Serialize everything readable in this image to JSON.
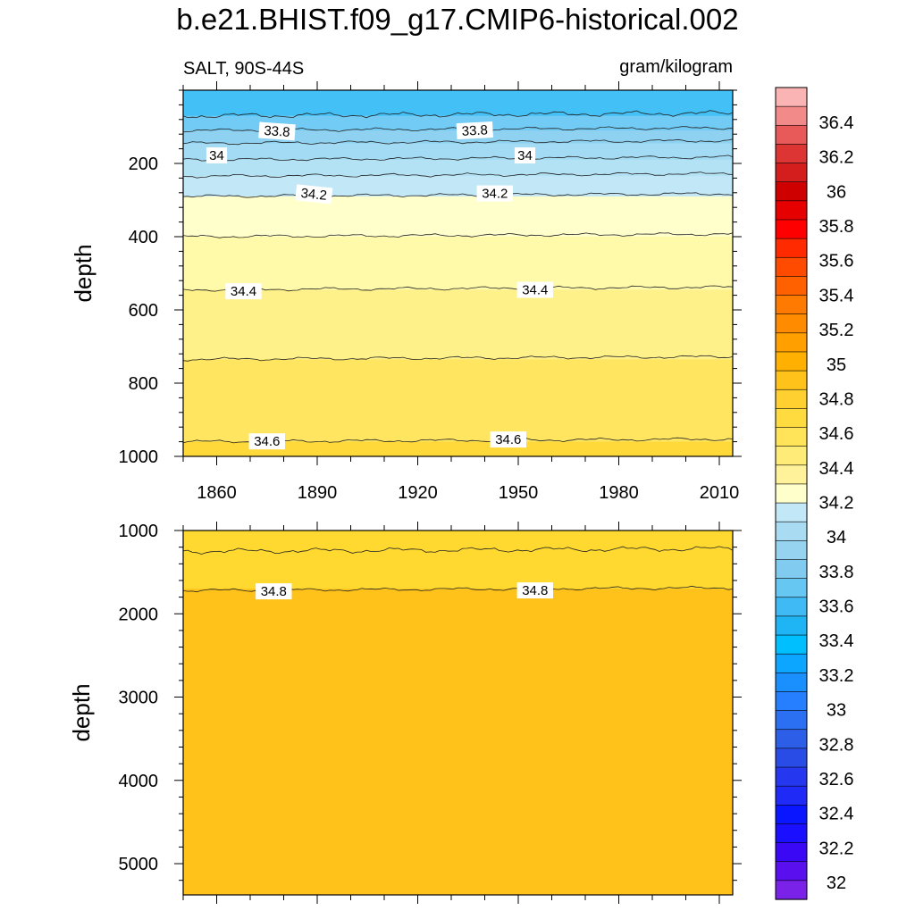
{
  "title": "b.e21.BHIST.f09_g17.CMIP6-historical.002",
  "left_subtitle": "SALT, 90S-44S",
  "right_subtitle": "gram/kilogram",
  "chart_data": [
    {
      "type": "contour",
      "panel": "upper",
      "xlabel": "",
      "ylabel": "depth",
      "x_tick_labels": [
        "1860",
        "1890",
        "1920",
        "1950",
        "1980",
        "2010"
      ],
      "x_ticks": [
        1860,
        1890,
        1920,
        1950,
        1980,
        2010
      ],
      "xlim": [
        1850,
        2014
      ],
      "y_tick_labels": [
        "200",
        "400",
        "600",
        "800",
        "1000"
      ],
      "y_ticks": [
        200,
        400,
        600,
        800,
        1000
      ],
      "ylim": [
        0,
        1000
      ],
      "y_reversed": true,
      "contour_fills": [
        {
          "from": 0,
          "to": 70,
          "color": "#43c0f6"
        },
        {
          "from": 70,
          "to": 110,
          "color": "#72cbf4"
        },
        {
          "from": 110,
          "to": 145,
          "color": "#8ed1f1"
        },
        {
          "from": 145,
          "to": 190,
          "color": "#a2dbf3"
        },
        {
          "from": 190,
          "to": 235,
          "color": "#b4e2f5"
        },
        {
          "from": 235,
          "to": 290,
          "color": "#c2e7f6"
        },
        {
          "from": 290,
          "to": 400,
          "color": "#ffffcc"
        },
        {
          "from": 400,
          "to": 545,
          "color": "#fff9aa"
        },
        {
          "from": 545,
          "to": 735,
          "color": "#fff18a"
        },
        {
          "from": 735,
          "to": 960,
          "color": "#ffe560"
        },
        {
          "from": 960,
          "to": 1000,
          "color": "#ffd93a"
        }
      ],
      "contour_lines": [
        70,
        110,
        145,
        190,
        235,
        290,
        400,
        545,
        735,
        960
      ],
      "contour_labels": [
        {
          "text": "33.8",
          "year": 1878,
          "depth": 112,
          "angle": 4
        },
        {
          "text": "33.8",
          "year": 1937,
          "depth": 110,
          "angle": -3
        },
        {
          "text": "34",
          "year": 1860,
          "depth": 178,
          "angle": 0
        },
        {
          "text": "34",
          "year": 1952,
          "depth": 178,
          "angle": 0
        },
        {
          "text": "34.2",
          "year": 1889,
          "depth": 284,
          "angle": 6
        },
        {
          "text": "34.2",
          "year": 1943,
          "depth": 282,
          "angle": 0
        },
        {
          "text": "34.4",
          "year": 1868,
          "depth": 549,
          "angle": 0
        },
        {
          "text": "34.4",
          "year": 1955,
          "depth": 545,
          "angle": 0
        },
        {
          "text": "34.6",
          "year": 1875,
          "depth": 959,
          "angle": 0
        },
        {
          "text": "34.6",
          "year": 1947,
          "depth": 954,
          "angle": 0
        }
      ]
    },
    {
      "type": "contour",
      "panel": "lower",
      "xlabel": "",
      "ylabel": "depth",
      "x_ticks": [
        1860,
        1890,
        1920,
        1950,
        1980,
        2010
      ],
      "xlim": [
        1850,
        2014
      ],
      "y_tick_labels": [
        "1000",
        "2000",
        "3000",
        "4000",
        "5000"
      ],
      "y_ticks": [
        1000,
        2000,
        3000,
        4000,
        5000
      ],
      "ylim": [
        1000,
        5375
      ],
      "y_reversed": true,
      "contour_fills": [
        {
          "from": 1000,
          "to": 1700,
          "color": "#ffd92f"
        },
        {
          "from": 1700,
          "to": 5375,
          "color": "#ffc21a"
        }
      ],
      "contour_lines": [
        1250,
        1720
      ],
      "contour_labels": [
        {
          "text": "34.8",
          "year": 1877,
          "depth": 1730,
          "angle": 0
        },
        {
          "text": "34.8",
          "year": 1955,
          "depth": 1720,
          "angle": 0
        }
      ]
    }
  ],
  "colorbar": {
    "labels": [
      "36.4",
      "36.2",
      "36",
      "35.8",
      "35.6",
      "35.4",
      "35.2",
      "35",
      "34.8",
      "34.6",
      "34.4",
      "34.2",
      "34",
      "33.8",
      "33.6",
      "33.4",
      "33.2",
      "33",
      "32.8",
      "32.6",
      "32.4",
      "32.2",
      "32"
    ],
    "colors": [
      "#fbb4b4",
      "#f28a8a",
      "#e85a5a",
      "#dd3434",
      "#d41e1e",
      "#cf0000",
      "#e60000",
      "#ff0000",
      "#ff2a00",
      "#ff4b00",
      "#ff6000",
      "#ff7a00",
      "#ff8c00",
      "#ffa000",
      "#ffb000",
      "#ffc21a",
      "#ffd030",
      "#ffdb40",
      "#ffe45a",
      "#ffeb78",
      "#fff29a",
      "#ffffcc",
      "#c2e7f6",
      "#a9dcf3",
      "#95d3f1",
      "#80cbef",
      "#67c7f3",
      "#3fbaf5",
      "#1fb5f5",
      "#00bfff",
      "#0ca5ff",
      "#1a90ff",
      "#267fff",
      "#2b6ff2",
      "#2d5ee8",
      "#2a4ce6",
      "#2538ef",
      "#1f2af7",
      "#0a16ff",
      "#1a10ff",
      "#3a08f5",
      "#5a10ee",
      "#7a22e8"
    ]
  }
}
